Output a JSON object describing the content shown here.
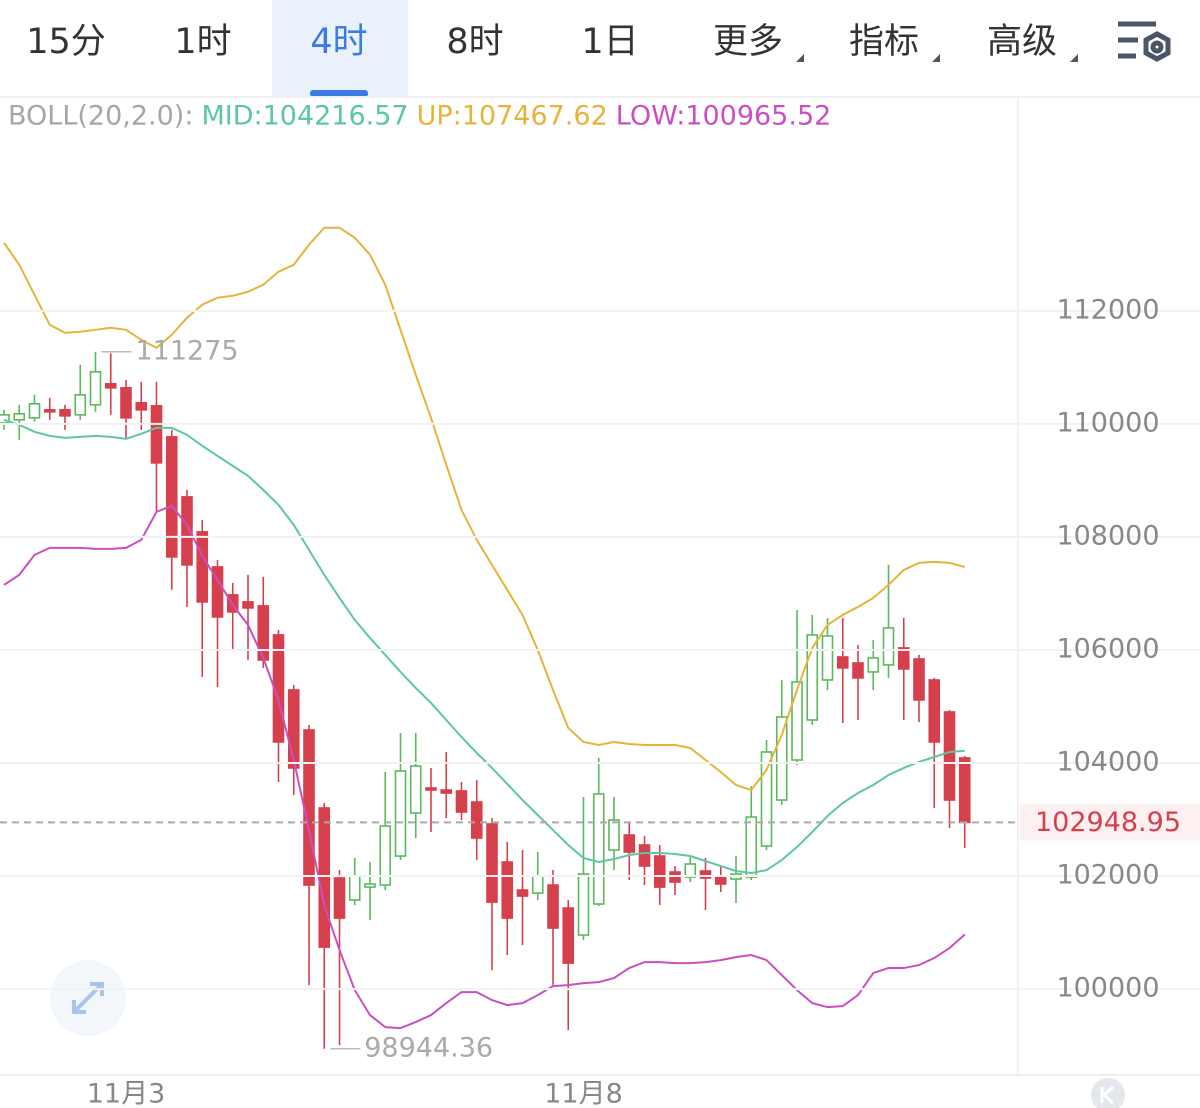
{
  "tabs": {
    "items": [
      {
        "label": "15分"
      },
      {
        "label": "1时"
      },
      {
        "label": "4时"
      },
      {
        "label": "8时"
      },
      {
        "label": "1日"
      },
      {
        "label": "更多",
        "menu": true
      },
      {
        "label": "指标",
        "menu": true
      },
      {
        "label": "高级",
        "menu": true
      }
    ],
    "selected": 2
  },
  "chart_data": {
    "type": "candlestick",
    "indicator": "BOLL(20,2.0):",
    "categories": [
      null,
      null,
      null,
      null,
      null,
      null,
      null,
      null,
      "11月3",
      null,
      null,
      null,
      null,
      null,
      null,
      null,
      null,
      null,
      null,
      null,
      null,
      null,
      null,
      null,
      null,
      null,
      null,
      null,
      null,
      null,
      null,
      null,
      null,
      null,
      null,
      null,
      null,
      null,
      "11月8",
      null,
      null,
      null,
      null,
      null,
      null,
      null,
      null,
      null,
      null,
      null,
      null,
      null,
      null,
      null,
      null,
      null,
      null,
      null,
      null,
      null,
      null,
      null,
      null,
      null
    ],
    "open": [
      110018,
      110071,
      110107,
      110248,
      110248,
      110160,
      110337,
      110709,
      110638,
      110372,
      110319,
      109770,
      108708,
      108089,
      107469,
      106974,
      106850,
      106779,
      106266,
      105292,
      104584,
      103204,
      101965,
      101575,
      101805,
      101841,
      102354,
      103115,
      103558,
      103522,
      103505,
      103310,
      102921,
      102248,
      101752,
      101699,
      101841,
      101434,
      100956,
      101505,
      102460,
      102726,
      102549,
      102354,
      102071,
      101982,
      102089,
      102000,
      101947,
      101982,
      102531,
      103345,
      104053,
      104761,
      105469,
      105876,
      105770,
      105611,
      105735,
      106036,
      105841,
      105469,
      104903,
      104089
    ],
    "high": [
      110248,
      110337,
      110514,
      110461,
      110337,
      111045,
      111275,
      111250.01,
      110779,
      110744,
      110744,
      109894,
      108832,
      108301,
      107593,
      107186,
      107328,
      107292,
      106354,
      105381,
      104673,
      103292,
      102106,
      102319,
      102248,
      103841,
      104531,
      104531,
      103912,
      104195,
      103664,
      103699,
      103027,
      102602,
      102460,
      102425,
      102106,
      101575,
      103398,
      104089,
      103398,
      102956,
      102708,
      102549,
      102177,
      102372,
      102319,
      102177,
      102354,
      103593,
      104407,
      105469,
      106708,
      106620,
      106567,
      106567,
      106089,
      106177,
      107505,
      106567,
      105912,
      105505,
      104938,
      104124
    ],
    "low": [
      109894,
      109717,
      110036,
      110071,
      109894,
      110071,
      110213,
      110160,
      109753,
      109894,
      108443,
      107062,
      106761,
      105522,
      105345,
      106000,
      105823,
      105682,
      103664,
      103434,
      100071,
      98944.36,
      99009,
      101487,
      101221,
      101752,
      102283,
      102673,
      102779,
      103027,
      102991,
      102283,
      100336,
      100602,
      100779,
      101575,
      100071,
      99274,
      100867,
      101469,
      102106,
      101929,
      101841,
      101487,
      101664,
      101894,
      101398,
      101717,
      101522,
      101929,
      102460,
      103257,
      103965,
      104673,
      105292,
      104708,
      104761,
      105292,
      105505,
      104761,
      104726,
      103204,
      102850,
      102496
    ],
    "close": [
      110160,
      110178,
      110355,
      110213,
      110142,
      110514,
      110921,
      110638,
      110107,
      110248,
      109310,
      107646,
      107505,
      106850,
      106584,
      106673,
      106744,
      105823,
      104372,
      103912,
      101841,
      100743,
      101257,
      102000,
      101859,
      102885,
      103859,
      103947,
      103522,
      103469,
      103133,
      102673,
      101540,
      101257,
      101646,
      102000,
      101080,
      100460,
      102036,
      103452,
      102991,
      102425,
      102177,
      101805,
      101894,
      102213,
      101965,
      101859,
      102036,
      103044,
      104195,
      104814,
      105434,
      106266,
      106248,
      105682,
      105505,
      105859,
      106390,
      105664,
      105115,
      104372,
      103345,
      102948.95
    ],
    "up_color": "#5cb85c",
    "down_color": "#d6404c",
    "series": [
      {
        "name": "MID:104216.57",
        "color": "#5cc6a6",
        "values": [
          110071,
          109983,
          109859,
          109788,
          109753,
          109770,
          109788,
          109770,
          109735,
          109824,
          109930,
          109930,
          109806,
          109611,
          109434,
          109257,
          109080,
          108832,
          108567,
          108213,
          107770,
          107328,
          106921,
          106531,
          106213,
          105912,
          105611,
          105328,
          105062,
          104761,
          104460,
          104177,
          103912,
          103629,
          103345,
          103080,
          102814,
          102549,
          102319,
          102248,
          102301,
          102372,
          102407,
          102407,
          102390,
          102354,
          102266,
          102177,
          102089,
          102053,
          102106,
          102283,
          102513,
          102779,
          103062,
          103292,
          103469,
          103611,
          103788,
          103912,
          104018,
          104106,
          104195,
          104216.57
        ]
      },
      {
        "name": "UP:107467.62",
        "color": "#e6b43c",
        "values": [
          113204,
          112815,
          112284,
          111753,
          111611,
          111629,
          111664,
          111700,
          111664,
          111487,
          111346,
          111576,
          111877,
          112107,
          112231,
          112266,
          112337,
          112461,
          112691,
          112815,
          113169,
          113470,
          113470,
          113293,
          112992,
          112461,
          111664,
          110868,
          110107,
          109275,
          108478,
          107947,
          107505,
          107062,
          106620,
          106000,
          105292,
          104620,
          104372,
          104319,
          104372,
          104337,
          104319,
          104319,
          104319,
          104266,
          104053,
          103841,
          103611,
          103522,
          103876,
          104496,
          105292,
          106036,
          106443,
          106620,
          106761,
          106921,
          107151,
          107416,
          107540,
          107558,
          107540,
          107467.62
        ]
      },
      {
        "name": "LOW:100965.52",
        "color": "#c94fc2",
        "values": [
          107151,
          107328,
          107682,
          107806,
          107806,
          107806,
          107788,
          107788,
          107806,
          107947,
          108443,
          108549,
          108213,
          107664,
          107239,
          106797,
          106443,
          105859,
          105115,
          104053,
          102814,
          101487,
          100690,
          99982,
          99540,
          99327,
          99310,
          99416,
          99540,
          99752,
          99947,
          99947,
          99805,
          99717,
          99752,
          99894,
          100053,
          100071,
          100106,
          100124,
          100195,
          100372,
          100478,
          100478,
          100460,
          100460,
          100478,
          100513,
          100566,
          100602,
          100513,
          100248,
          99982,
          99752,
          99681,
          99699,
          99894,
          100283,
          100372,
          100372,
          100425,
          100549,
          100726,
          100965.52
        ]
      }
    ],
    "ylim": [
      98480,
      115730
    ],
    "yticks": [
      100000,
      102000,
      104000,
      106000,
      108000,
      110000,
      112000
    ],
    "grid": true
  }
}
